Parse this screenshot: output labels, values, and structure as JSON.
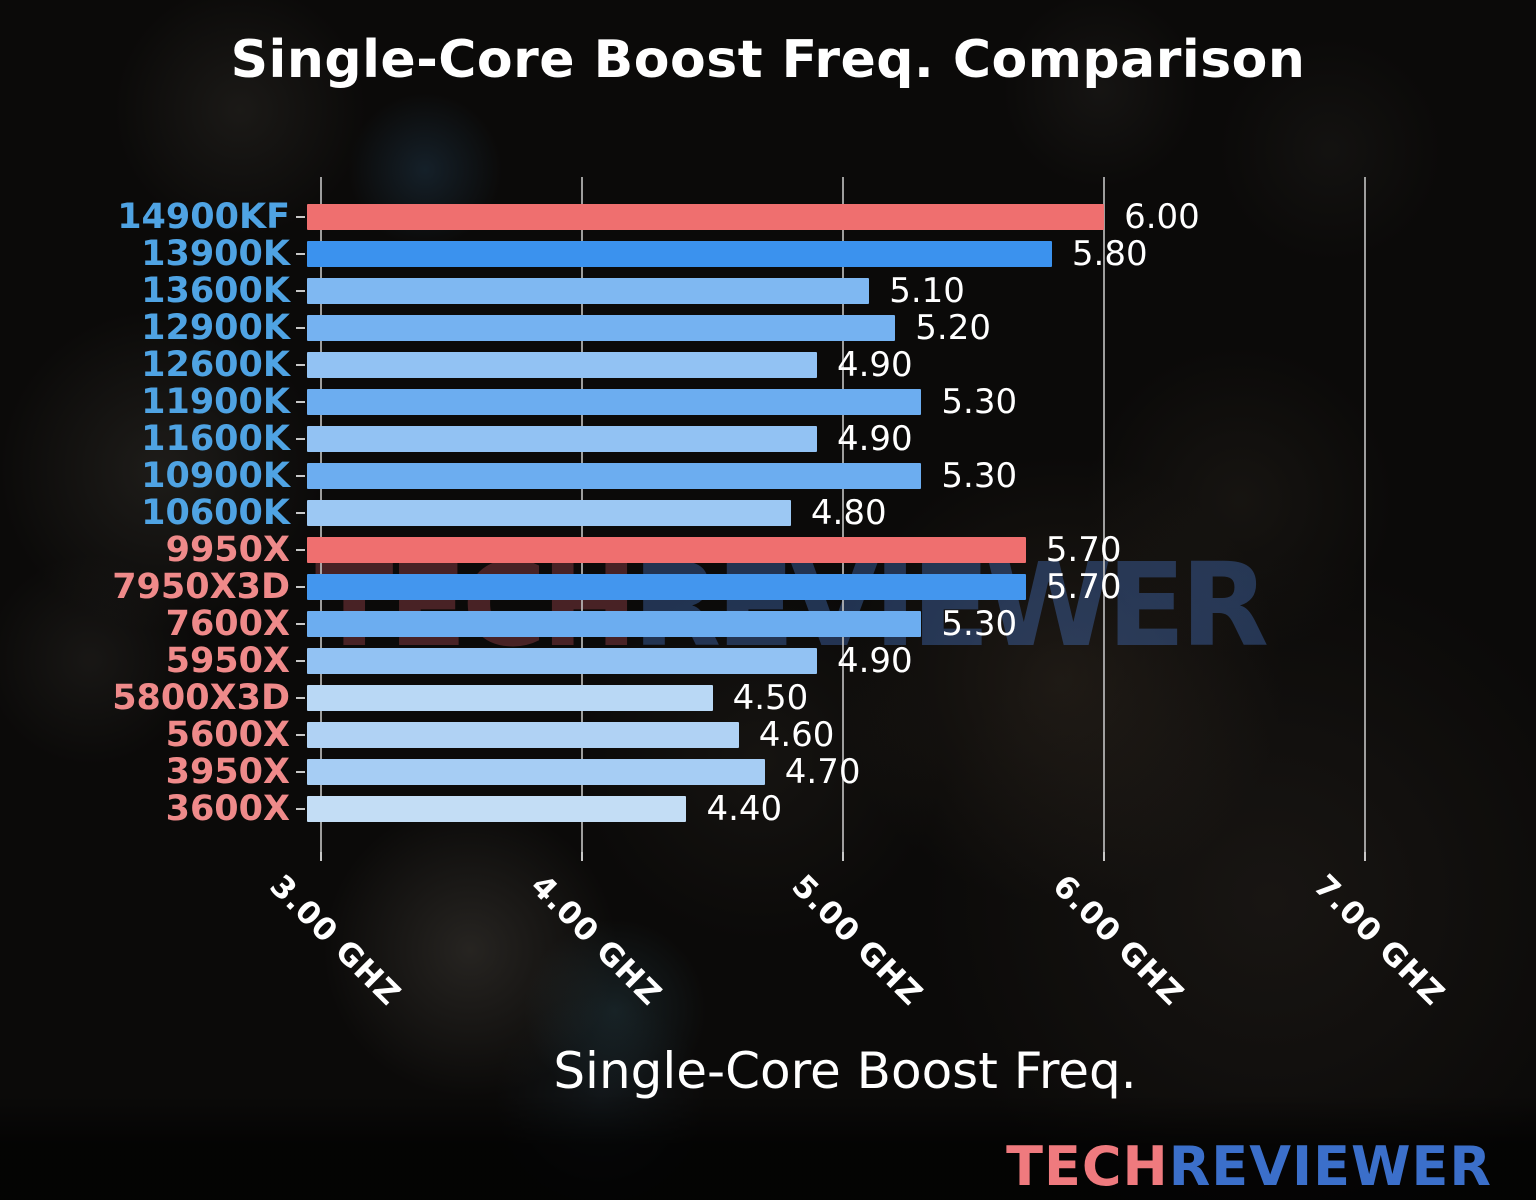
{
  "chart_data": {
    "type": "bar",
    "orientation": "horizontal",
    "title": "Single-Core Boost Freq. Comparison",
    "xlabel": "Single-Core Boost Freq.",
    "x_unit": "GHz",
    "xlim": [
      2.95,
      7.27
    ],
    "grid": "vertical-on",
    "x_ticks": [
      {
        "value": 3.0,
        "label": "3.00 GHZ"
      },
      {
        "value": 4.0,
        "label": "4.00 GHZ"
      },
      {
        "value": 5.0,
        "label": "5.00 GHZ"
      },
      {
        "value": 6.0,
        "label": "6.00 GHZ"
      },
      {
        "value": 7.0,
        "label": "7.00 GHZ"
      }
    ],
    "vendor_colors": {
      "intel": "#4fa3e3",
      "amd": "#ef8a8a"
    },
    "bar_color_scale": {
      "highlight": "#ef6f6f",
      "low_value": "#c3ddf5",
      "high_value": "#3b92ee"
    },
    "rows": [
      {
        "label": "14900KF",
        "value": 6.0,
        "display": "6.00",
        "vendor": "intel",
        "highlight": true,
        "color": "#ef6f6f"
      },
      {
        "label": "13900K",
        "value": 5.8,
        "display": "5.80",
        "vendor": "intel",
        "highlight": false,
        "color": "#3b92ee"
      },
      {
        "label": "13600K",
        "value": 5.1,
        "display": "5.10",
        "vendor": "intel",
        "highlight": false,
        "color": "#7fb8f2"
      },
      {
        "label": "12900K",
        "value": 5.2,
        "display": "5.20",
        "vendor": "intel",
        "highlight": false,
        "color": "#75b2f1"
      },
      {
        "label": "12600K",
        "value": 4.9,
        "display": "4.90",
        "vendor": "intel",
        "highlight": false,
        "color": "#92c2f3"
      },
      {
        "label": "11900K",
        "value": 5.3,
        "display": "5.30",
        "vendor": "intel",
        "highlight": false,
        "color": "#6cadf0"
      },
      {
        "label": "11600K",
        "value": 4.9,
        "display": "4.90",
        "vendor": "intel",
        "highlight": false,
        "color": "#92c2f3"
      },
      {
        "label": "10900K",
        "value": 5.3,
        "display": "5.30",
        "vendor": "intel",
        "highlight": false,
        "color": "#6cadf0"
      },
      {
        "label": "10600K",
        "value": 4.8,
        "display": "4.80",
        "vendor": "intel",
        "highlight": false,
        "color": "#9cc8f3"
      },
      {
        "label": "9950X",
        "value": 5.7,
        "display": "5.70",
        "vendor": "amd",
        "highlight": true,
        "color": "#ef6f6f"
      },
      {
        "label": "7950X3D",
        "value": 5.7,
        "display": "5.70",
        "vendor": "amd",
        "highlight": false,
        "color": "#4396ee"
      },
      {
        "label": "7600X",
        "value": 5.3,
        "display": "5.30",
        "vendor": "amd",
        "highlight": false,
        "color": "#6cadf0"
      },
      {
        "label": "5950X",
        "value": 4.9,
        "display": "4.90",
        "vendor": "amd",
        "highlight": false,
        "color": "#92c2f3"
      },
      {
        "label": "5800X3D",
        "value": 4.5,
        "display": "4.50",
        "vendor": "amd",
        "highlight": false,
        "color": "#b9d8f5"
      },
      {
        "label": "5600X",
        "value": 4.6,
        "display": "4.60",
        "vendor": "amd",
        "highlight": false,
        "color": "#b0d2f4"
      },
      {
        "label": "3950X",
        "value": 4.7,
        "display": "4.70",
        "vendor": "amd",
        "highlight": false,
        "color": "#a6cdf4"
      },
      {
        "label": "3600X",
        "value": 4.4,
        "display": "4.40",
        "vendor": "amd",
        "highlight": false,
        "color": "#c3ddf5"
      }
    ]
  },
  "watermark": {
    "part1": "TECH",
    "part2": "REVIEWER"
  },
  "logo": {
    "part1": "TECH",
    "part2": "REVIEWER"
  }
}
